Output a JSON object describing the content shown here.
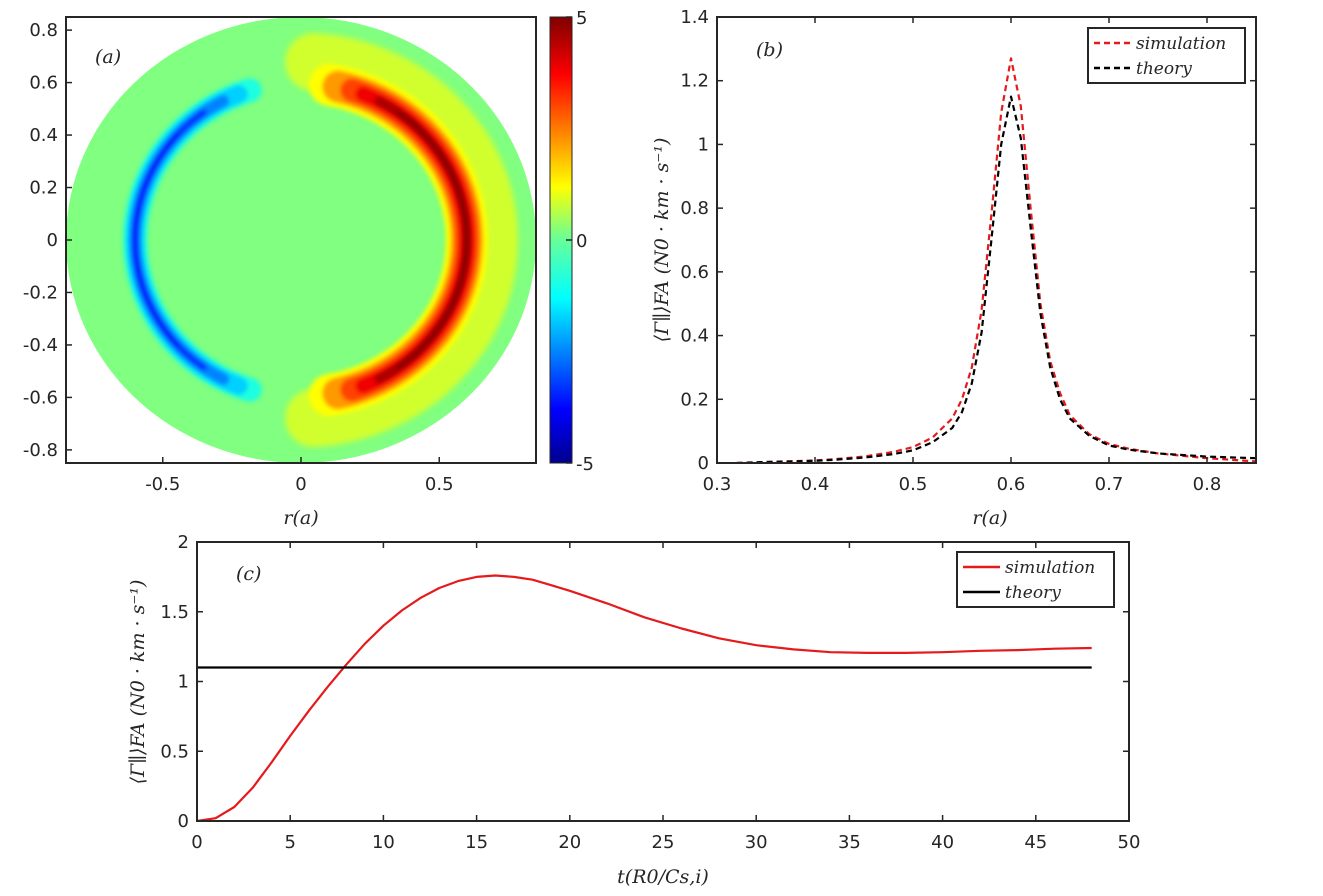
{
  "chart_data": [
    {
      "id": "a",
      "type": "heatmap",
      "panel_label": "(a)",
      "title": "",
      "xlabel": "r(a)",
      "ylabel": "",
      "xlim": [
        -0.85,
        0.85
      ],
      "ylim": [
        -0.85,
        0.85
      ],
      "x_ticks": [
        -0.5,
        0,
        0.5
      ],
      "x_tick_labels": [
        "-0.5",
        "0",
        "0.5"
      ],
      "y_ticks": [
        0.8,
        0.6,
        0.4,
        0.2,
        0,
        -0.2,
        -0.4,
        -0.6,
        -0.8
      ],
      "y_tick_labels": [
        "0.8",
        "0.6",
        "0.4",
        "0.2",
        "0",
        "-0.2",
        "-0.4",
        "-0.6",
        "-0.8"
      ],
      "domain_radius": 0.85,
      "colorbar": {
        "range": [
          -5,
          5
        ],
        "ticks": [
          5,
          0,
          -5
        ],
        "tick_labels": [
          "5",
          "0",
          "-5"
        ],
        "colormap": "jet"
      },
      "features": [
        {
          "name": "positive-crescent",
          "center_radius": 0.6,
          "angle_range_deg": [
            -80,
            80
          ],
          "peak": 5
        },
        {
          "name": "negative-crescent",
          "center_radius": 0.6,
          "angle_range_deg": [
            108,
            252
          ],
          "peak": -3.8
        },
        {
          "name": "positive-halo",
          "center_radius": 0.66,
          "angle_range_deg": [
            -86,
            86
          ],
          "peak": 0.8
        }
      ]
    },
    {
      "id": "b",
      "type": "line",
      "panel_label": "(b)",
      "title": "",
      "xlabel": "r(a)",
      "ylabel": "⟨Γ∥⟩FA (N0 · km · s⁻¹)",
      "xlim": [
        0.3,
        0.85
      ],
      "ylim": [
        0,
        1.4
      ],
      "x_ticks": [
        0.3,
        0.4,
        0.5,
        0.6,
        0.7,
        0.8
      ],
      "x_tick_labels": [
        "0.3",
        "0.4",
        "0.5",
        "0.6",
        "0.7",
        "0.8"
      ],
      "y_ticks": [
        0,
        0.2,
        0.4,
        0.6,
        0.8,
        1,
        1.2,
        1.4
      ],
      "y_tick_labels": [
        "0",
        "0.2",
        "0.4",
        "0.6",
        "0.8",
        "1",
        "1.2",
        "1.4"
      ],
      "legend_position": "top-right",
      "x": [
        0.32,
        0.35,
        0.38,
        0.4,
        0.42,
        0.45,
        0.48,
        0.5,
        0.52,
        0.54,
        0.55,
        0.56,
        0.57,
        0.58,
        0.59,
        0.6,
        0.61,
        0.62,
        0.63,
        0.64,
        0.65,
        0.66,
        0.68,
        0.7,
        0.72,
        0.75,
        0.8,
        0.85
      ],
      "series": [
        {
          "name": "simulation",
          "color": "#e41a1c",
          "dash": "6,4",
          "values": [
            0.0,
            0.003,
            0.006,
            0.008,
            0.012,
            0.02,
            0.035,
            0.05,
            0.08,
            0.14,
            0.2,
            0.3,
            0.48,
            0.78,
            1.1,
            1.27,
            1.12,
            0.8,
            0.5,
            0.32,
            0.22,
            0.15,
            0.09,
            0.06,
            0.045,
            0.03,
            0.015,
            0.005
          ]
        },
        {
          "name": "theory",
          "color": "#000000",
          "dash": "6,4",
          "values": [
            0.0,
            0.003,
            0.005,
            0.007,
            0.01,
            0.017,
            0.028,
            0.04,
            0.065,
            0.11,
            0.16,
            0.25,
            0.41,
            0.7,
            1.0,
            1.15,
            1.02,
            0.74,
            0.47,
            0.3,
            0.2,
            0.14,
            0.085,
            0.055,
            0.042,
            0.03,
            0.02,
            0.015
          ]
        }
      ]
    },
    {
      "id": "c",
      "type": "line",
      "panel_label": "(c)",
      "title": "",
      "xlabel": "t(R0/Cs,i)",
      "ylabel": "⟨Γ∥⟩FA (N0 · km · s⁻¹)",
      "xlim": [
        0,
        50
      ],
      "ylim": [
        0,
        2
      ],
      "x_ticks": [
        0,
        5,
        10,
        15,
        20,
        25,
        30,
        35,
        40,
        45,
        50
      ],
      "x_tick_labels": [
        "0",
        "5",
        "10",
        "15",
        "20",
        "25",
        "30",
        "35",
        "40",
        "45",
        "50"
      ],
      "y_ticks": [
        0,
        0.5,
        1,
        1.5,
        2
      ],
      "y_tick_labels": [
        "0",
        "0.5",
        "1",
        "1.5",
        "2"
      ],
      "legend_position": "top-right",
      "x": [
        0,
        1,
        2,
        3,
        4,
        5,
        6,
        7,
        8,
        9,
        10,
        11,
        12,
        13,
        14,
        15,
        16,
        17,
        18,
        19,
        20,
        22,
        24,
        26,
        28,
        30,
        32,
        34,
        36,
        38,
        40,
        42,
        44,
        46,
        48
      ],
      "series": [
        {
          "name": "simulation",
          "color": "#e41a1c",
          "dash": "",
          "values": [
            0,
            0.02,
            0.1,
            0.24,
            0.42,
            0.61,
            0.79,
            0.96,
            1.12,
            1.27,
            1.4,
            1.51,
            1.6,
            1.67,
            1.72,
            1.75,
            1.76,
            1.75,
            1.73,
            1.69,
            1.65,
            1.56,
            1.46,
            1.38,
            1.31,
            1.26,
            1.23,
            1.21,
            1.205,
            1.205,
            1.21,
            1.22,
            1.225,
            1.235,
            1.24
          ]
        },
        {
          "name": "theory",
          "color": "#000000",
          "dash": "",
          "values": [
            1.1,
            1.1,
            1.1,
            1.1,
            1.1,
            1.1,
            1.1,
            1.1,
            1.1,
            1.1,
            1.1,
            1.1,
            1.1,
            1.1,
            1.1,
            1.1,
            1.1,
            1.1,
            1.1,
            1.1,
            1.1,
            1.1,
            1.1,
            1.1,
            1.1,
            1.1,
            1.1,
            1.1,
            1.1,
            1.1,
            1.1,
            1.1,
            1.1,
            1.1,
            1.1
          ]
        }
      ]
    }
  ]
}
